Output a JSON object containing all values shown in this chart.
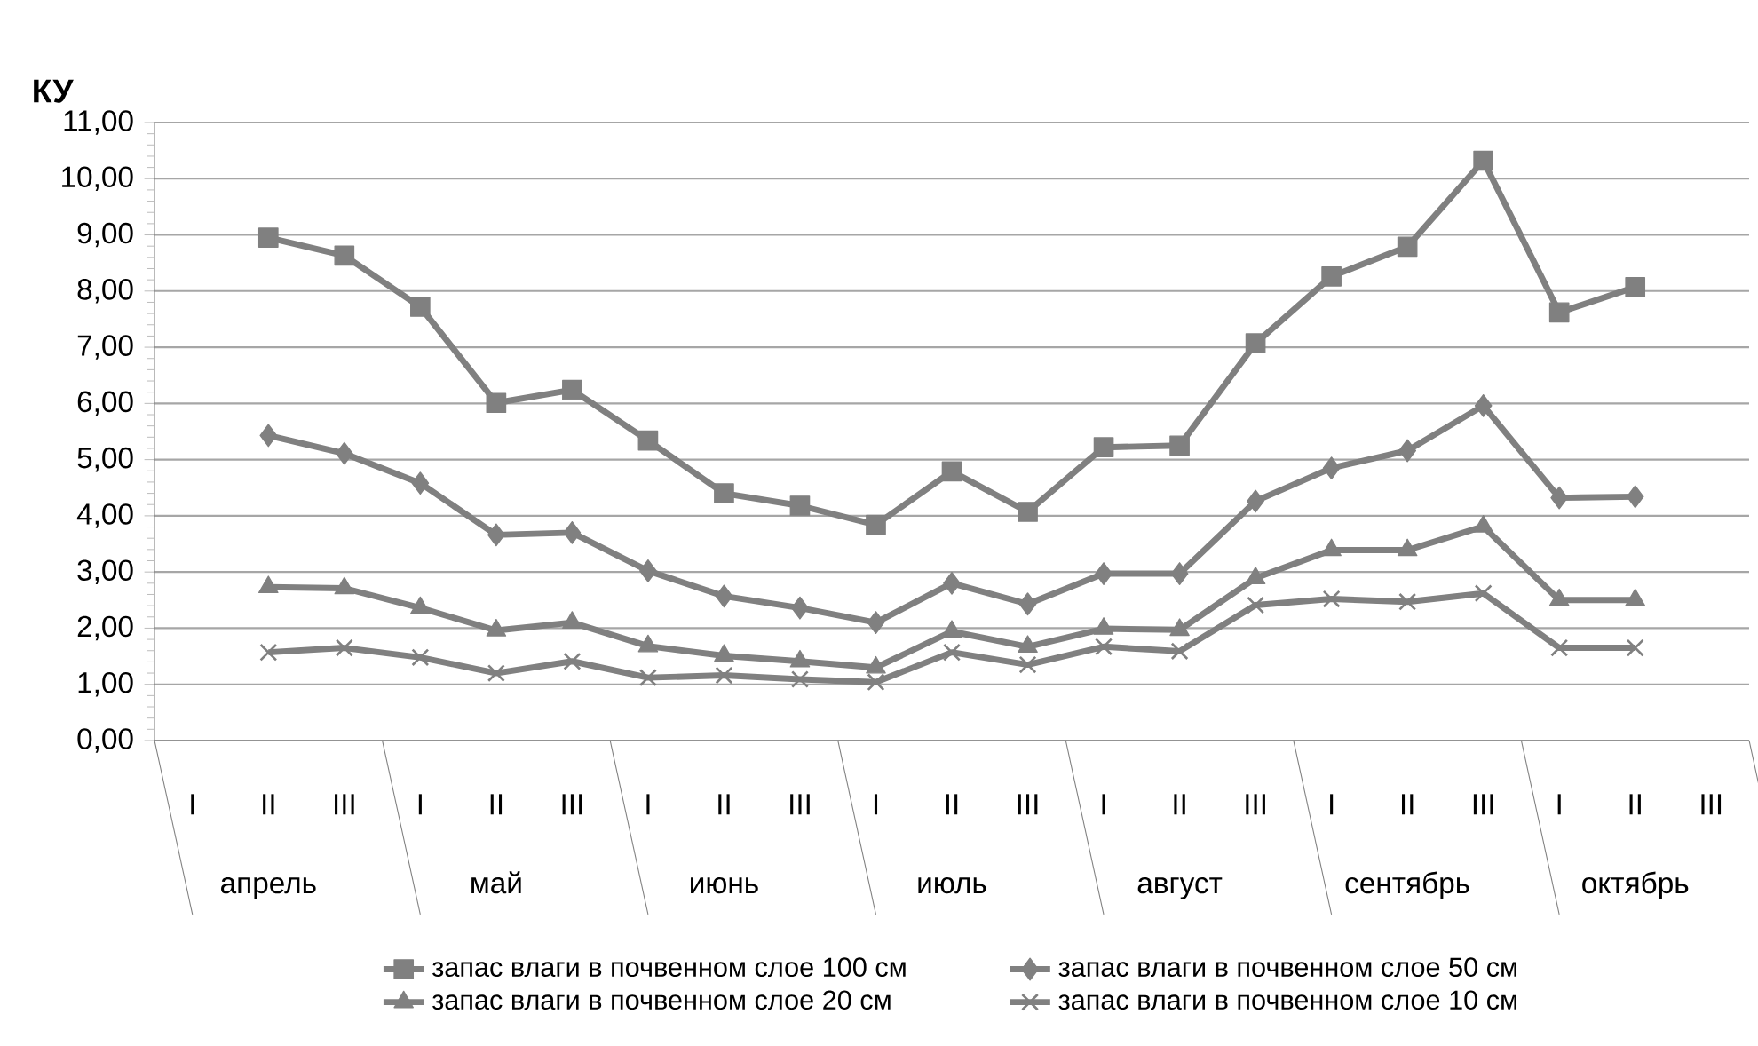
{
  "chart_data": {
    "type": "line",
    "ylabel": "КУ",
    "categories": [
      "I",
      "II",
      "III",
      "I",
      "II",
      "III",
      "I",
      "II",
      "III",
      "I",
      "II",
      "III",
      "I",
      "II",
      "III",
      "I",
      "II",
      "III",
      "I",
      "II",
      "III"
    ],
    "annotations": [
      "апрель",
      "май",
      "июнь",
      "июль",
      "август",
      "сентябрь",
      "октябрь"
    ],
    "series": [
      {
        "name": "запас влаги в почвенном слое 100 см",
        "color": "#808080",
        "marker": "square",
        "values": [
          null,
          8.95,
          8.63,
          7.72,
          6.01,
          6.24,
          5.34,
          4.4,
          4.18,
          3.84,
          4.79,
          4.07,
          5.22,
          5.25,
          7.07,
          8.26,
          8.79,
          10.32,
          7.62,
          8.07,
          null
        ]
      },
      {
        "name": "запас влаги в почвенном слое 50 см",
        "color": "#808080",
        "marker": "diamond",
        "values": [
          null,
          5.43,
          5.11,
          4.58,
          3.66,
          3.7,
          3.02,
          2.57,
          2.36,
          2.1,
          2.8,
          2.43,
          2.97,
          2.97,
          4.26,
          4.85,
          5.16,
          5.96,
          4.32,
          4.34,
          null
        ]
      },
      {
        "name": "запас влаги в почвенном слое 20 см",
        "color": "#808080",
        "marker": "triangle",
        "values": [
          null,
          2.73,
          2.71,
          2.36,
          1.96,
          2.1,
          1.68,
          1.51,
          1.41,
          1.3,
          1.94,
          1.67,
          1.99,
          1.97,
          2.89,
          3.39,
          3.39,
          3.81,
          2.5,
          2.5,
          null
        ]
      },
      {
        "name": "запас влаги в почвенном слое 10 см",
        "color": "#808080",
        "marker": "cross",
        "values": [
          null,
          1.57,
          1.65,
          1.48,
          1.2,
          1.41,
          1.12,
          1.16,
          1.09,
          1.04,
          1.57,
          1.35,
          1.67,
          1.59,
          2.41,
          2.52,
          2.47,
          2.62,
          1.65,
          1.65,
          null
        ]
      }
    ],
    "ylim": [
      0,
      11
    ],
    "yticks": [
      {
        "value": 0,
        "label": "0,00"
      },
      {
        "value": 1,
        "label": "1,00"
      },
      {
        "value": 2,
        "label": "2,00"
      },
      {
        "value": 3,
        "label": "3,00"
      },
      {
        "value": 4,
        "label": "4,00"
      },
      {
        "value": 5,
        "label": "5,00"
      },
      {
        "value": 6,
        "label": "6,00"
      },
      {
        "value": 7,
        "label": "7,00"
      },
      {
        "value": 8,
        "label": "8,00"
      },
      {
        "value": 9,
        "label": "9,00"
      },
      {
        "value": 10,
        "label": "10,00"
      },
      {
        "value": 11,
        "label": "11,00"
      }
    ],
    "grid": "y",
    "legend": "bottom"
  }
}
